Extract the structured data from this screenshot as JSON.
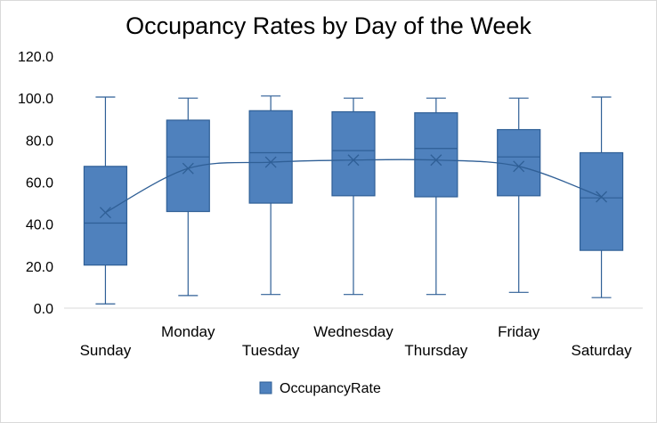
{
  "chart_data": {
    "type": "box",
    "title": "Occupancy Rates by Day of the Week",
    "xlabel": "",
    "ylabel": "",
    "ylim": [
      0,
      120
    ],
    "yticks": [
      "0.0",
      "20.0",
      "40.0",
      "60.0",
      "80.0",
      "100.0",
      "120.0"
    ],
    "grid": false,
    "legend_position": "bottom",
    "series": [
      {
        "name": "OccupancyRate",
        "color": "#4f81bd",
        "stroke": "#2f5f96",
        "boxes": [
          {
            "category": "Sunday",
            "min": 2,
            "q1": 20.5,
            "median": 40.5,
            "q3": 67.5,
            "max": 100.5,
            "mean": 45.5
          },
          {
            "category": "Monday",
            "min": 6,
            "q1": 46,
            "median": 72,
            "q3": 89.5,
            "max": 100,
            "mean": 66.5
          },
          {
            "category": "Tuesday",
            "min": 6.5,
            "q1": 50,
            "median": 74,
            "q3": 94,
            "max": 101,
            "mean": 69.5
          },
          {
            "category": "Wednesday",
            "min": 6.5,
            "q1": 53.5,
            "median": 75,
            "q3": 93.5,
            "max": 100,
            "mean": 70.5
          },
          {
            "category": "Thursday",
            "min": 6.5,
            "q1": 53,
            "median": 76,
            "q3": 93,
            "max": 100,
            "mean": 70.5
          },
          {
            "category": "Friday",
            "min": 7.5,
            "q1": 53.5,
            "median": 72,
            "q3": 85,
            "max": 100,
            "mean": 67.5
          },
          {
            "category": "Saturday",
            "min": 5,
            "q1": 27.5,
            "median": 52.5,
            "q3": 74,
            "max": 100.5,
            "mean": 53
          }
        ]
      }
    ]
  }
}
